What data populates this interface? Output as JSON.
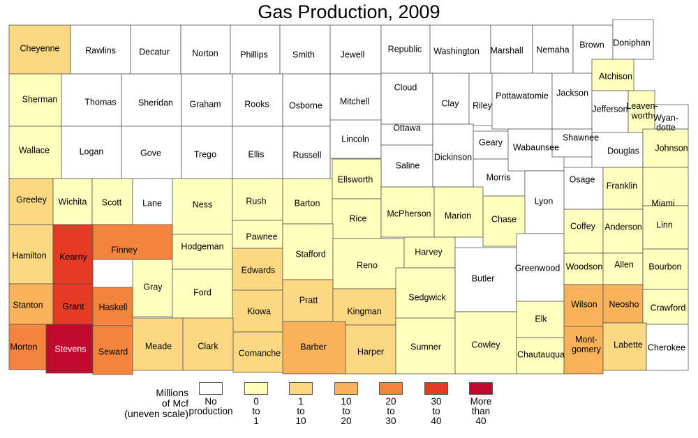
{
  "title": "Gas Production, 2009",
  "colors": {
    "none": "#ffffff",
    "c1": "#ffffbe",
    "c2": "#fcd882",
    "c3": "#f9b25a",
    "c4": "#f5853c",
    "c5": "#e53a23",
    "c6": "#c0092d",
    "border": "#555555"
  },
  "legend": {
    "caption": [
      "Millions",
      "of Mcf",
      "(uneven scale)"
    ],
    "items": [
      {
        "cls": "none",
        "label": [
          "No",
          "production"
        ]
      },
      {
        "cls": "c1",
        "label": [
          "0",
          "to",
          "1"
        ]
      },
      {
        "cls": "c2",
        "label": [
          "1",
          "to",
          "10"
        ]
      },
      {
        "cls": "c3",
        "label": [
          "10",
          "to",
          "20"
        ]
      },
      {
        "cls": "c4",
        "label": [
          "20",
          "to",
          "30"
        ]
      },
      {
        "cls": "c5",
        "label": [
          "30",
          "to",
          "40"
        ]
      },
      {
        "cls": "c6",
        "label": [
          "More",
          "than",
          "40"
        ]
      }
    ]
  },
  "counties": [
    {
      "name": "Cheyenne",
      "cls": "c2"
    },
    {
      "name": "Rawlins",
      "cls": "none"
    },
    {
      "name": "Decatur",
      "cls": "none"
    },
    {
      "name": "Norton",
      "cls": "none"
    },
    {
      "name": "Phillips",
      "cls": "none"
    },
    {
      "name": "Smith",
      "cls": "none"
    },
    {
      "name": "Jewell",
      "cls": "none"
    },
    {
      "name": "Republic",
      "cls": "none"
    },
    {
      "name": "Washington",
      "cls": "none"
    },
    {
      "name": "Marshall",
      "cls": "none"
    },
    {
      "name": "Nemaha",
      "cls": "none"
    },
    {
      "name": "Brown",
      "cls": "none"
    },
    {
      "name": "Doniphan",
      "cls": "none"
    },
    {
      "name": "Sherman",
      "cls": "c1"
    },
    {
      "name": "Thomas",
      "cls": "none"
    },
    {
      "name": "Sheridan",
      "cls": "none"
    },
    {
      "name": "Graham",
      "cls": "none"
    },
    {
      "name": "Rooks",
      "cls": "none"
    },
    {
      "name": "Osborne",
      "cls": "none"
    },
    {
      "name": "Mitchell",
      "cls": "none"
    },
    {
      "name": "Cloud",
      "cls": "none"
    },
    {
      "name": "Clay",
      "cls": "none"
    },
    {
      "name": "Riley",
      "cls": "none"
    },
    {
      "name": "Pottawatomie",
      "cls": "none"
    },
    {
      "name": "Jackson",
      "cls": "none"
    },
    {
      "name": "Atchison",
      "cls": "c1"
    },
    {
      "name": "Jefferson",
      "cls": "none"
    },
    {
      "name": "Leaven-worth",
      "cls": "c1"
    },
    {
      "name": "Wyan-dotte",
      "cls": "none"
    },
    {
      "name": "Wallace",
      "cls": "c1"
    },
    {
      "name": "Logan",
      "cls": "none"
    },
    {
      "name": "Gove",
      "cls": "none"
    },
    {
      "name": "Trego",
      "cls": "none"
    },
    {
      "name": "Ellis",
      "cls": "none"
    },
    {
      "name": "Russell",
      "cls": "none"
    },
    {
      "name": "Lincoln",
      "cls": "none"
    },
    {
      "name": "Ottawa",
      "cls": "none"
    },
    {
      "name": "Saline",
      "cls": "none"
    },
    {
      "name": "Dickinson",
      "cls": "none"
    },
    {
      "name": "Geary",
      "cls": "none"
    },
    {
      "name": "Morris",
      "cls": "none"
    },
    {
      "name": "Wabaunsee",
      "cls": "none"
    },
    {
      "name": "Shawnee",
      "cls": "none"
    },
    {
      "name": "Douglas",
      "cls": "none"
    },
    {
      "name": "Johnson",
      "cls": "c1"
    },
    {
      "name": "Greeley",
      "cls": "c2"
    },
    {
      "name": "Wichita",
      "cls": "c1"
    },
    {
      "name": "Scott",
      "cls": "c1"
    },
    {
      "name": "Lane",
      "cls": "none"
    },
    {
      "name": "Ness",
      "cls": "c1"
    },
    {
      "name": "Rush",
      "cls": "c1"
    },
    {
      "name": "Barton",
      "cls": "c1"
    },
    {
      "name": "Ellsworth",
      "cls": "c1"
    },
    {
      "name": "Rice",
      "cls": "c1"
    },
    {
      "name": "McPherson",
      "cls": "c1"
    },
    {
      "name": "Marion",
      "cls": "c1"
    },
    {
      "name": "Chase",
      "cls": "c1"
    },
    {
      "name": "Lyon",
      "cls": "none"
    },
    {
      "name": "Osage",
      "cls": "none"
    },
    {
      "name": "Franklin",
      "cls": "c1"
    },
    {
      "name": "Miami",
      "cls": "c1"
    },
    {
      "name": "Hamilton",
      "cls": "c2"
    },
    {
      "name": "Kearny",
      "cls": "c5"
    },
    {
      "name": "Finney",
      "cls": "c4"
    },
    {
      "name": "Hodgeman",
      "cls": "c1"
    },
    {
      "name": "Pawnee",
      "cls": "c1"
    },
    {
      "name": "Stafford",
      "cls": "c1"
    },
    {
      "name": "Reno",
      "cls": "c1"
    },
    {
      "name": "Harvey",
      "cls": "c1"
    },
    {
      "name": "Butler",
      "cls": "none"
    },
    {
      "name": "Greenwood",
      "cls": "none"
    },
    {
      "name": "Coffey",
      "cls": "c1"
    },
    {
      "name": "Anderson",
      "cls": "c1"
    },
    {
      "name": "Linn",
      "cls": "c1"
    },
    {
      "name": "Gray",
      "cls": "c1"
    },
    {
      "name": "Ford",
      "cls": "c1"
    },
    {
      "name": "Edwards",
      "cls": "c2"
    },
    {
      "name": "Woodson",
      "cls": "c1"
    },
    {
      "name": "Allen",
      "cls": "c1"
    },
    {
      "name": "Bourbon",
      "cls": "c1"
    },
    {
      "name": "Stanton",
      "cls": "c3"
    },
    {
      "name": "Grant",
      "cls": "c5"
    },
    {
      "name": "Haskell",
      "cls": "c4"
    },
    {
      "name": "Kiowa",
      "cls": "c2"
    },
    {
      "name": "Pratt",
      "cls": "c2"
    },
    {
      "name": "Kingman",
      "cls": "c2"
    },
    {
      "name": "Sedgwick",
      "cls": "c1"
    },
    {
      "name": "Elk",
      "cls": "c1"
    },
    {
      "name": "Wilson",
      "cls": "c3"
    },
    {
      "name": "Neosho",
      "cls": "c3"
    },
    {
      "name": "Crawford",
      "cls": "c1"
    },
    {
      "name": "Morton",
      "cls": "c4"
    },
    {
      "name": "Stevens",
      "cls": "c6"
    },
    {
      "name": "Seward",
      "cls": "c4"
    },
    {
      "name": "Meade",
      "cls": "c2"
    },
    {
      "name": "Clark",
      "cls": "c2"
    },
    {
      "name": "Comanche",
      "cls": "c2"
    },
    {
      "name": "Barber",
      "cls": "c3"
    },
    {
      "name": "Harper",
      "cls": "c2"
    },
    {
      "name": "Sumner",
      "cls": "c1"
    },
    {
      "name": "Cowley",
      "cls": "c1"
    },
    {
      "name": "Chautauqua",
      "cls": "c1"
    },
    {
      "name": "Mont-gomery",
      "cls": "c3"
    },
    {
      "name": "Labette",
      "cls": "c2"
    },
    {
      "name": "Cherokee",
      "cls": "none"
    }
  ]
}
